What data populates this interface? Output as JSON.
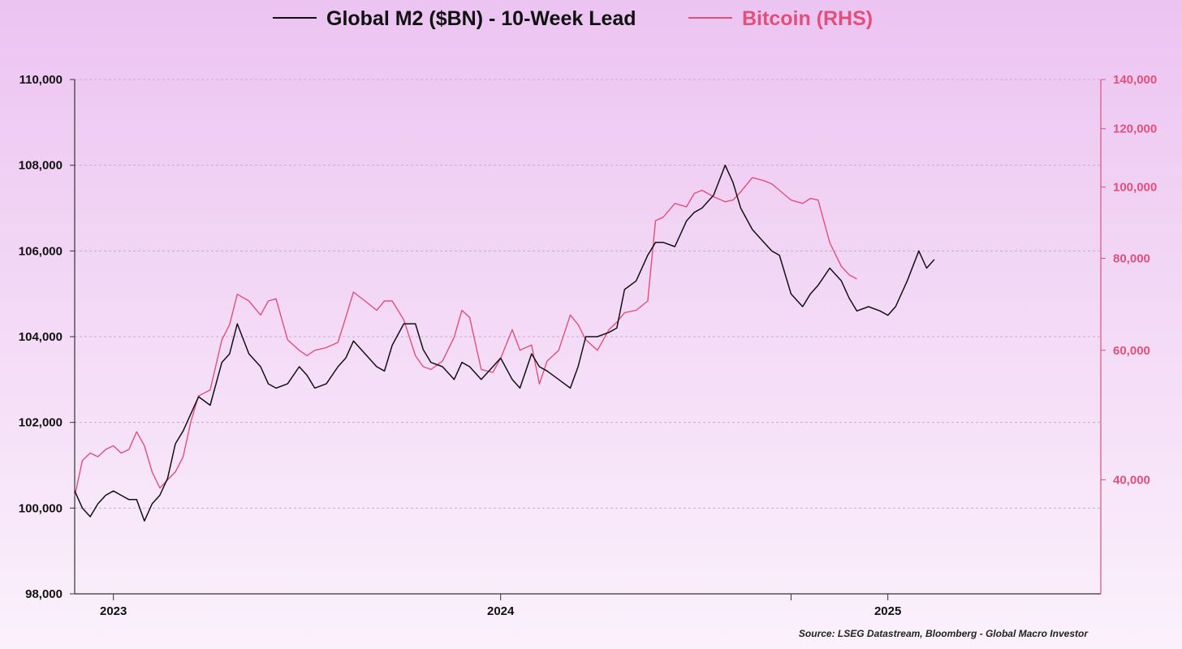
{
  "chart_data": {
    "type": "line",
    "legend": [
      {
        "name": "Global M2 ($BN) - 10-Week Lead",
        "color": "#111111"
      },
      {
        "name": "Bitcoin (RHS)",
        "color": "#e0507a"
      }
    ],
    "x_range": [
      2022.9,
      2025.55
    ],
    "y_left_range": [
      98000,
      110000
    ],
    "y_right_range": [
      28000,
      140000
    ],
    "y_right_scale": "log",
    "x_ticks": [
      {
        "value": 2023.0,
        "label": "2023"
      },
      {
        "value": 2024.0,
        "label": "2024"
      },
      {
        "value": 2025.0,
        "label": "2025"
      }
    ],
    "x_minor_ticks": [
      2024.75
    ],
    "y_left_ticks": [
      {
        "value": 98000,
        "label": "98,000"
      },
      {
        "value": 100000,
        "label": "100,000"
      },
      {
        "value": 102000,
        "label": "102,000"
      },
      {
        "value": 104000,
        "label": "104,000"
      },
      {
        "value": 106000,
        "label": "106,000"
      },
      {
        "value": 108000,
        "label": "108,000"
      },
      {
        "value": 110000,
        "label": "110,000"
      }
    ],
    "y_right_ticks": [
      {
        "value": 40000,
        "label": "40,000"
      },
      {
        "value": 60000,
        "label": "60,000"
      },
      {
        "value": 80000,
        "label": "80,000"
      },
      {
        "value": 100000,
        "label": "100,000"
      },
      {
        "value": 120000,
        "label": "120,000"
      },
      {
        "value": 140000,
        "label": "140,000"
      }
    ],
    "grid": true,
    "series": [
      {
        "name": "Global M2 ($BN) - 10-Week Lead",
        "axis": "left",
        "color": "#111111",
        "x": [
          2022.9,
          2022.92,
          2022.94,
          2022.96,
          2022.98,
          2023.0,
          2023.02,
          2023.04,
          2023.06,
          2023.08,
          2023.1,
          2023.12,
          2023.14,
          2023.16,
          2023.18,
          2023.2,
          2023.22,
          2023.25,
          2023.28,
          2023.3,
          2023.32,
          2023.35,
          2023.38,
          2023.4,
          2023.42,
          2023.45,
          2023.48,
          2023.5,
          2023.52,
          2023.55,
          2023.58,
          2023.6,
          2023.62,
          2023.65,
          2023.68,
          2023.7,
          2023.72,
          2023.75,
          2023.78,
          2023.8,
          2023.82,
          2023.85,
          2023.88,
          2023.9,
          2023.92,
          2023.95,
          2023.98,
          2024.0,
          2024.03,
          2024.05,
          2024.08,
          2024.1,
          2024.12,
          2024.15,
          2024.18,
          2024.2,
          2024.22,
          2024.25,
          2024.28,
          2024.3,
          2024.32,
          2024.35,
          2024.38,
          2024.4,
          2024.42,
          2024.45,
          2024.48,
          2024.5,
          2024.52,
          2024.55,
          2024.58,
          2024.6,
          2024.62,
          2024.65,
          2024.68,
          2024.7,
          2024.72,
          2024.75,
          2024.78,
          2024.8,
          2024.82,
          2024.85,
          2024.88,
          2024.9,
          2024.92,
          2024.95,
          2024.98,
          2025.0,
          2025.02,
          2025.05,
          2025.08,
          2025.1,
          2025.12
        ],
        "y": [
          100400,
          100000,
          99800,
          100100,
          100300,
          100400,
          100300,
          100200,
          100200,
          99700,
          100100,
          100300,
          100700,
          101500,
          101800,
          102200,
          102600,
          102400,
          103400,
          103600,
          104300,
          103600,
          103300,
          102900,
          102800,
          102900,
          103300,
          103100,
          102800,
          102900,
          103300,
          103500,
          103900,
          103600,
          103300,
          103200,
          103800,
          104300,
          104300,
          103700,
          103400,
          103300,
          103000,
          103400,
          103300,
          103000,
          103300,
          103500,
          103000,
          102800,
          103600,
          103300,
          103200,
          103000,
          102800,
          103300,
          104000,
          104000,
          104100,
          104200,
          105100,
          105300,
          105900,
          106200,
          106200,
          106100,
          106700,
          106900,
          107000,
          107300,
          108000,
          107600,
          107000,
          106500,
          106200,
          106000,
          105900,
          105000,
          104700,
          105000,
          105200,
          105600,
          105300,
          104900,
          104600,
          104700,
          104600,
          104500,
          104700,
          105300,
          106000,
          105600,
          105800
        ]
      },
      {
        "name": "Bitcoin (RHS)",
        "axis": "right",
        "color": "#e0507a",
        "x": [
          2022.9,
          2022.92,
          2022.94,
          2022.96,
          2022.98,
          2023.0,
          2023.02,
          2023.04,
          2023.06,
          2023.08,
          2023.1,
          2023.12,
          2023.14,
          2023.16,
          2023.18,
          2023.2,
          2023.22,
          2023.25,
          2023.28,
          2023.3,
          2023.32,
          2023.35,
          2023.38,
          2023.4,
          2023.42,
          2023.45,
          2023.48,
          2023.5,
          2023.52,
          2023.55,
          2023.58,
          2023.6,
          2023.62,
          2023.65,
          2023.68,
          2023.7,
          2023.72,
          2023.75,
          2023.78,
          2023.8,
          2023.82,
          2023.85,
          2023.88,
          2023.9,
          2023.92,
          2023.95,
          2023.98,
          2024.0,
          2024.03,
          2024.05,
          2024.08,
          2024.1,
          2024.12,
          2024.15,
          2024.18,
          2024.2,
          2024.22,
          2024.25,
          2024.28,
          2024.3,
          2024.32,
          2024.35,
          2024.38,
          2024.4,
          2024.42,
          2024.45,
          2024.48,
          2024.5,
          2024.52,
          2024.55,
          2024.58,
          2024.6,
          2024.62,
          2024.65,
          2024.68,
          2024.7,
          2024.72,
          2024.75,
          2024.78,
          2024.8,
          2024.82,
          2024.85,
          2024.88,
          2024.9,
          2024.92
        ],
        "y": [
          38000,
          42500,
          43500,
          43000,
          44000,
          44500,
          43500,
          44000,
          46500,
          44500,
          41000,
          39000,
          40000,
          41000,
          43000,
          48000,
          52000,
          53000,
          62000,
          65000,
          71500,
          70000,
          67000,
          70000,
          70500,
          62000,
          60000,
          59000,
          60000,
          60500,
          61500,
          66500,
          72000,
          70000,
          68000,
          70000,
          70000,
          66000,
          59000,
          57000,
          56500,
          58000,
          62500,
          68000,
          66500,
          56500,
          56000,
          58500,
          64000,
          60000,
          61000,
          54000,
          58000,
          60000,
          67000,
          65000,
          62000,
          60000,
          64000,
          65500,
          67500,
          68000,
          70000,
          90000,
          91000,
          95000,
          94000,
          98000,
          99000,
          97000,
          95500,
          96000,
          98500,
          103000,
          102000,
          101000,
          99000,
          96000,
          95000,
          96500,
          96000,
          84000,
          78000,
          76000,
          75000
        ]
      }
    ],
    "source_text": "Source: LSEG Datastream, Bloomberg - Global Macro Investor"
  }
}
